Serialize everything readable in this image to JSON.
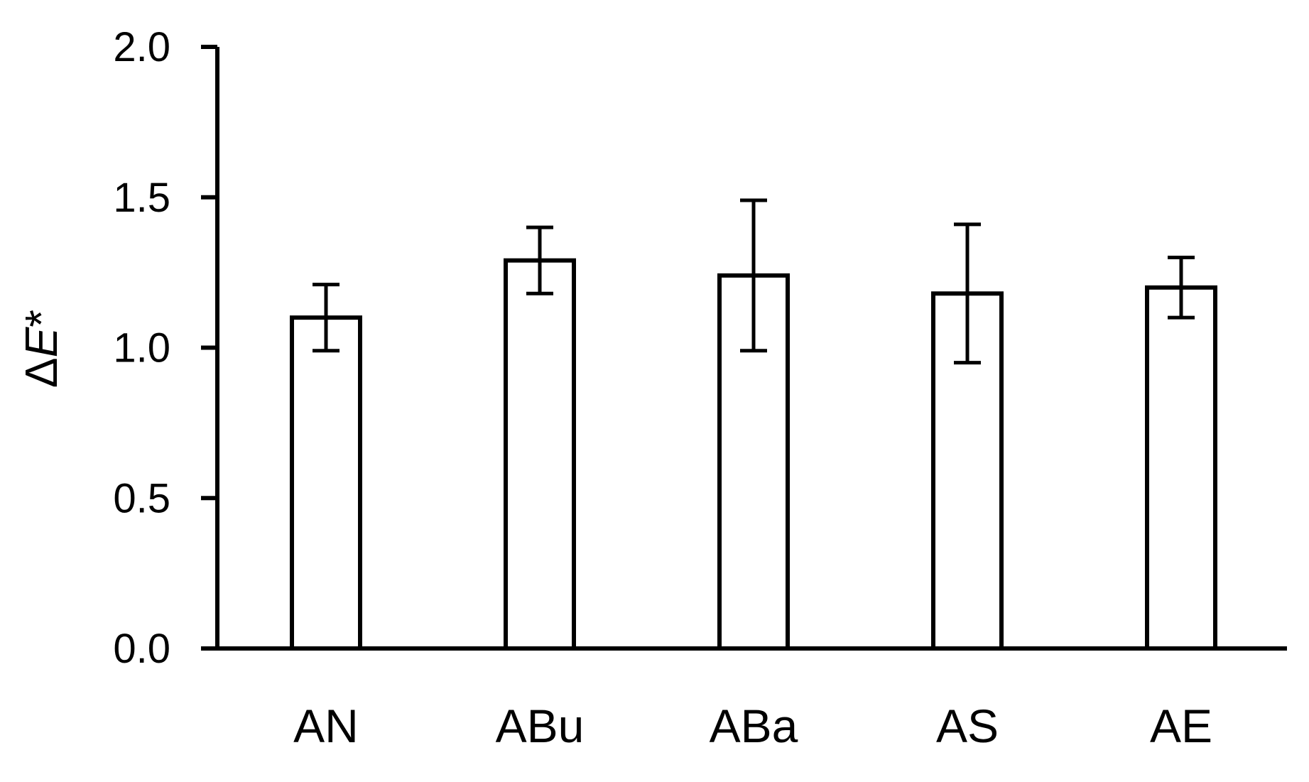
{
  "chart_data": {
    "type": "bar",
    "title": "",
    "xlabel": "",
    "ylabel": {
      "prefix": "Δ",
      "variable": "E",
      "suffix": "*"
    },
    "categories": [
      "AN",
      "ABu",
      "ABa",
      "AS",
      "AE"
    ],
    "series": [
      {
        "values": [
          1.1,
          1.29,
          1.24,
          1.18,
          1.2
        ],
        "error": [
          0.11,
          0.11,
          0.25,
          0.23,
          0.1
        ]
      }
    ],
    "ylim": [
      0,
      2.0
    ],
    "yticks": [
      "0.0",
      "0.5",
      "1.0",
      "1.5",
      "2.0"
    ],
    "ytick_values": [
      0,
      0.5,
      1.0,
      1.5,
      2.0
    ],
    "grid": false,
    "legend": "none",
    "colors": {
      "bar_fill": "#ffffff",
      "bar_stroke": "#000000",
      "axis": "#000000",
      "error_bar": "#000000"
    }
  }
}
